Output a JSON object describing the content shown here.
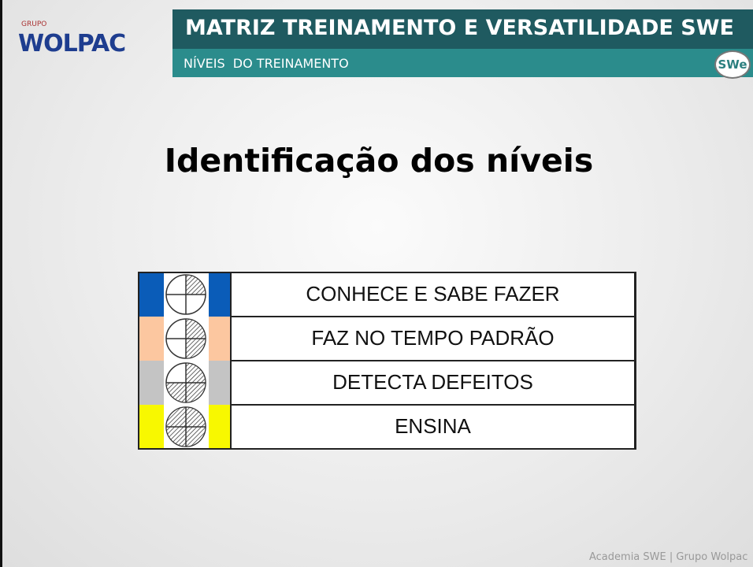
{
  "header": {
    "logo_small": "GRUPO",
    "logo": "WOLPAC",
    "title": "MATRIZ TREINAMENTO E VERSATILIDADE SWE",
    "subtitle": "NÍVEIS  DO TREINAMENTO",
    "badge": "SWe"
  },
  "heading": "Identificação dos níveis",
  "table": {
    "rows": [
      {
        "label": "CONHECE E SABE FAZER",
        "color": "#0a5cb8"
      },
      {
        "label": "FAZ NO TEMPO PADRÃO",
        "color": "#fcc7a0"
      },
      {
        "label": "DETECTA DEFEITOS",
        "color": "#c4c4c4"
      },
      {
        "label": "ENSINA",
        "color": "#f8f800"
      }
    ]
  },
  "footer": "Academia SWE | Grupo Wolpac"
}
